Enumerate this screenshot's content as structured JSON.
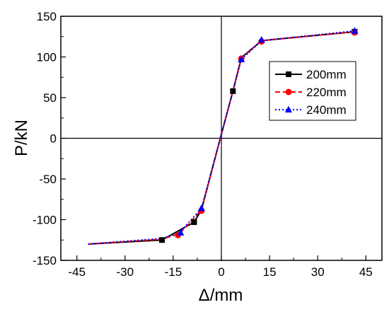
{
  "chart_data": {
    "type": "line",
    "xlabel": "Δ/mm",
    "ylabel": "P/kN",
    "xlim": [
      -50,
      50
    ],
    "ylim": [
      -150,
      150
    ],
    "x_ticks": [
      -45,
      -30,
      -15,
      0,
      15,
      30,
      45
    ],
    "y_ticks": [
      -150,
      -100,
      -50,
      0,
      50,
      100,
      150
    ],
    "legend_position": "center-right",
    "series": [
      {
        "name": "200mm",
        "color": "#000000",
        "dash": "solid",
        "marker": "square",
        "x": [
          -41.5,
          -18.5,
          -8.5,
          -6.2,
          0,
          3.6,
          6.2,
          12.5,
          41.5
        ],
        "y": [
          -130,
          -125,
          -103,
          -88,
          5,
          58,
          99,
          120,
          131
        ],
        "markers": [
          [
            -18.5,
            -125
          ],
          [
            -8.5,
            -103
          ],
          [
            3.6,
            58
          ],
          [
            41.5,
            131
          ]
        ]
      },
      {
        "name": "220mm",
        "color": "#ff0000",
        "dash": "dashed",
        "marker": "circle",
        "x": [
          -41.5,
          -18.5,
          -13,
          -6.2,
          0,
          3.6,
          6.2,
          12.5,
          41.5
        ],
        "y": [
          -130,
          -124,
          -117,
          -88,
          5,
          58,
          98,
          120,
          131
        ],
        "markers": [
          [
            -13.5,
            -119
          ],
          [
            -6.2,
            -89
          ],
          [
            6.2,
            98
          ],
          [
            12.5,
            119
          ],
          [
            41.5,
            130
          ]
        ]
      },
      {
        "name": "240mm",
        "color": "#0000ff",
        "dash": "dotted",
        "marker": "triangle",
        "x": [
          -41.5,
          -18.5,
          -13,
          -6.2,
          0,
          3.6,
          6.2,
          12.5,
          41.5
        ],
        "y": [
          -130,
          -123,
          -116,
          -86,
          5,
          58,
          97,
          120,
          132
        ],
        "markers": [
          [
            -12.7,
            -116
          ],
          [
            -6.2,
            -86
          ],
          [
            6.2,
            97
          ],
          [
            12.5,
            121
          ],
          [
            41.5,
            132
          ]
        ]
      }
    ]
  }
}
